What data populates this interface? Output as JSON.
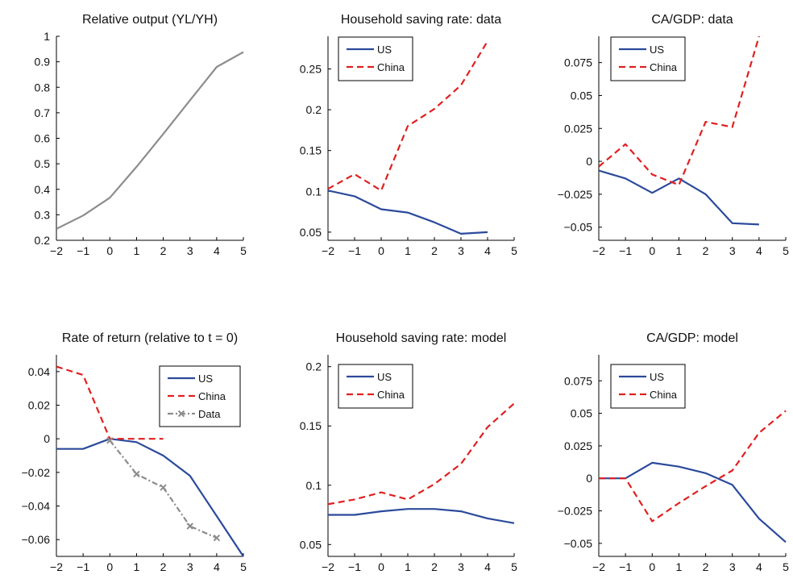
{
  "chart_data": [
    {
      "type": "line",
      "title": "Relative output (YL/YH)",
      "x": [
        -2,
        -1,
        0,
        1,
        2,
        3,
        4,
        5
      ],
      "xticks": [
        -2,
        -1,
        0,
        1,
        2,
        3,
        4,
        5
      ],
      "xtick_labels": [
        "−2",
        "−1",
        "0",
        "1",
        "2",
        "3",
        "4",
        "5"
      ],
      "xlim": [
        -2,
        5
      ],
      "ylim": [
        0.2,
        1.0
      ],
      "yticks": [
        0.2,
        0.3,
        0.4,
        0.5,
        0.6,
        0.7,
        0.8,
        0.9,
        1.0
      ],
      "ytick_labels": [
        "0.2",
        "0.3",
        "0.4",
        "0.5",
        "0.6",
        "0.7",
        "0.8",
        "0.9",
        "1"
      ],
      "grid": false,
      "legend": null,
      "series": [
        {
          "color": "#8c8c8c",
          "dash": "solid",
          "marker": "none",
          "x": [
            -2,
            -1,
            0,
            1,
            2,
            3,
            4,
            5
          ],
          "values": [
            0.245,
            0.297,
            0.367,
            0.488,
            0.617,
            0.749,
            0.88,
            0.938
          ]
        }
      ]
    },
    {
      "type": "line",
      "title": "Household saving rate: data",
      "xticks": [
        -2,
        -1,
        0,
        1,
        2,
        3,
        4,
        5
      ],
      "xtick_labels": [
        "−2",
        "−1",
        "0",
        "1",
        "2",
        "3",
        "4",
        "5"
      ],
      "xlim": [
        -2,
        5
      ],
      "ylim": [
        0.04,
        0.29
      ],
      "yticks": [
        0.05,
        0.1,
        0.15,
        0.2,
        0.25
      ],
      "ytick_labels": [
        "0.05",
        "0.1",
        "0.15",
        "0.2",
        "0.25"
      ],
      "grid": false,
      "legend": "top-left",
      "series": [
        {
          "name": "US",
          "color": "#2b4a9b",
          "dash": "solid",
          "marker": "none",
          "x": [
            -2,
            -1,
            0,
            1,
            2,
            3,
            4
          ],
          "values": [
            0.101,
            0.094,
            0.078,
            0.074,
            0.062,
            0.048,
            0.05
          ]
        },
        {
          "name": "China",
          "color": "#e02020",
          "dash": "dashed",
          "marker": "none",
          "x": [
            -2,
            -1,
            0,
            1,
            2,
            3,
            4
          ],
          "values": [
            0.103,
            0.121,
            0.101,
            0.18,
            0.201,
            0.23,
            0.284
          ]
        }
      ]
    },
    {
      "type": "line",
      "title": "CA/GDP: data",
      "xticks": [
        -2,
        -1,
        0,
        1,
        2,
        3,
        4,
        5
      ],
      "xtick_labels": [
        "−2",
        "−1",
        "0",
        "1",
        "2",
        "3",
        "4",
        "5"
      ],
      "xlim": [
        -2,
        5
      ],
      "ylim": [
        -0.06,
        0.095
      ],
      "yticks": [
        -0.05,
        -0.025,
        0,
        0.025,
        0.05,
        0.075
      ],
      "ytick_labels": [
        "−0.05",
        "−0.025",
        "0",
        "0.025",
        "0.05",
        "0.075"
      ],
      "grid": false,
      "legend": "top-left",
      "series": [
        {
          "name": "US",
          "color": "#2b4a9b",
          "dash": "solid",
          "marker": "none",
          "x": [
            -2,
            -1,
            0,
            1,
            2,
            3,
            4
          ],
          "values": [
            -0.007,
            -0.013,
            -0.024,
            -0.013,
            -0.025,
            -0.047,
            -0.048
          ]
        },
        {
          "name": "China",
          "color": "#e02020",
          "dash": "dashed",
          "marker": "none",
          "x": [
            -2,
            -1,
            0,
            1,
            2,
            3,
            4
          ],
          "values": [
            -0.004,
            0.013,
            -0.01,
            -0.018,
            0.03,
            0.026,
            0.095
          ]
        }
      ]
    },
    {
      "type": "line",
      "title": "Rate of return (relative to t = 0)",
      "xticks": [
        -2,
        -1,
        0,
        1,
        2,
        3,
        4,
        5
      ],
      "xtick_labels": [
        "−2",
        "−1",
        "0",
        "1",
        "2",
        "3",
        "4",
        "5"
      ],
      "xlim": [
        -2,
        5
      ],
      "ylim": [
        -0.07,
        0.05
      ],
      "yticks": [
        -0.06,
        -0.04,
        -0.02,
        0,
        0.02,
        0.04
      ],
      "ytick_labels": [
        "−0.06",
        "−0.04",
        "−0.02",
        "0",
        "0.02",
        "0.04"
      ],
      "grid": false,
      "legend": "top-right",
      "series": [
        {
          "name": "US",
          "color": "#2b4a9b",
          "dash": "solid",
          "marker": "none",
          "x": [
            -2,
            -1,
            0,
            1,
            2,
            3,
            4,
            5
          ],
          "values": [
            -0.006,
            -0.006,
            0.0,
            -0.002,
            -0.01,
            -0.022,
            -0.046,
            -0.07
          ]
        },
        {
          "name": "China",
          "color": "#e02020",
          "dash": "dashed",
          "marker": "none",
          "x": [
            -2,
            -1,
            0,
            1,
            2
          ],
          "values": [
            0.043,
            0.038,
            0.0,
            0.0,
            0.0
          ]
        },
        {
          "name": "Data",
          "color": "#8c8c8c",
          "dash": "dashdot",
          "marker": "x",
          "x": [
            0,
            1,
            2,
            3,
            4
          ],
          "values": [
            -0.001,
            -0.021,
            -0.029,
            -0.052,
            -0.059
          ]
        }
      ]
    },
    {
      "type": "line",
      "title": "Household saving rate: model",
      "xticks": [
        -2,
        -1,
        0,
        1,
        2,
        3,
        4,
        5
      ],
      "xtick_labels": [
        "−2",
        "−1",
        "0",
        "1",
        "2",
        "3",
        "4",
        "5"
      ],
      "xlim": [
        -2,
        5
      ],
      "ylim": [
        0.04,
        0.21
      ],
      "yticks": [
        0.05,
        0.1,
        0.15,
        0.2
      ],
      "ytick_labels": [
        "0.05",
        "0.1",
        "0.15",
        "0.2"
      ],
      "grid": false,
      "legend": "top-left",
      "series": [
        {
          "name": "US",
          "color": "#2b4a9b",
          "dash": "solid",
          "marker": "none",
          "x": [
            -2,
            -1,
            0,
            1,
            2,
            3,
            4,
            5
          ],
          "values": [
            0.075,
            0.075,
            0.078,
            0.08,
            0.08,
            0.078,
            0.072,
            0.068
          ]
        },
        {
          "name": "China",
          "color": "#e02020",
          "dash": "dashed",
          "marker": "none",
          "x": [
            -2,
            -1,
            0,
            1,
            2,
            3,
            4,
            5
          ],
          "values": [
            0.084,
            0.088,
            0.094,
            0.088,
            0.101,
            0.118,
            0.149,
            0.169
          ]
        }
      ]
    },
    {
      "type": "line",
      "title": "CA/GDP: model",
      "xticks": [
        -2,
        -1,
        0,
        1,
        2,
        3,
        4,
        5
      ],
      "xtick_labels": [
        "−2",
        "−1",
        "0",
        "1",
        "2",
        "3",
        "4",
        "5"
      ],
      "xlim": [
        -2,
        5
      ],
      "ylim": [
        -0.06,
        0.095
      ],
      "yticks": [
        -0.05,
        -0.025,
        0,
        0.025,
        0.05,
        0.075
      ],
      "ytick_labels": [
        "−0.05",
        "−0.025",
        "0",
        "0.025",
        "0.05",
        "0.075"
      ],
      "grid": false,
      "legend": "top-left",
      "series": [
        {
          "name": "US",
          "color": "#2b4a9b",
          "dash": "solid",
          "marker": "none",
          "x": [
            -2,
            -1,
            0,
            1,
            2,
            3,
            4,
            5
          ],
          "values": [
            0.0,
            0.0,
            0.012,
            0.009,
            0.004,
            -0.005,
            -0.031,
            -0.049
          ]
        },
        {
          "name": "China",
          "color": "#e02020",
          "dash": "dashed",
          "marker": "none",
          "x": [
            -2,
            -1,
            0,
            1,
            2,
            3,
            4,
            5
          ],
          "values": [
            0.0,
            0.0,
            -0.033,
            -0.019,
            -0.006,
            0.006,
            0.035,
            0.052
          ]
        }
      ]
    }
  ]
}
